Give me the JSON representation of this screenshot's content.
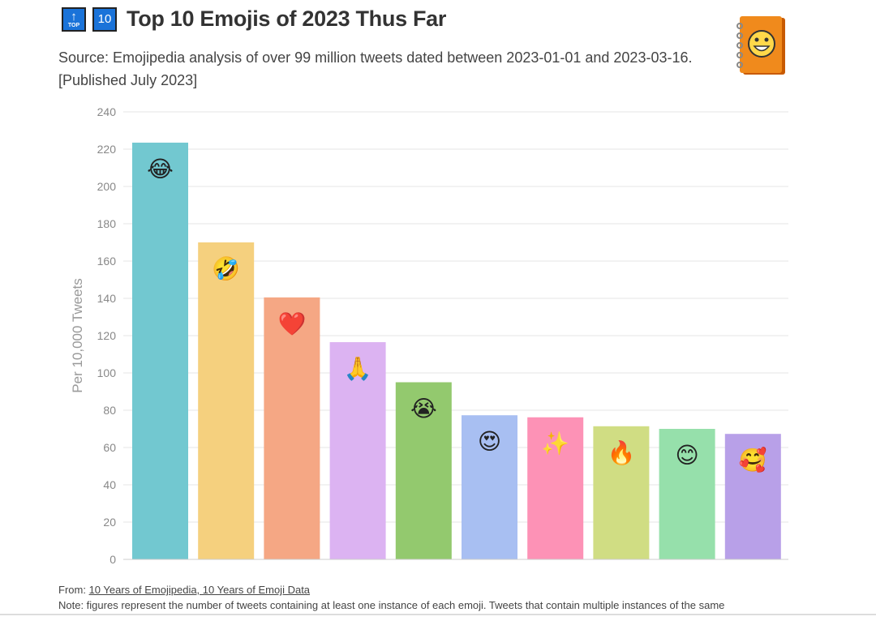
{
  "header": {
    "badge_top_label": "TOP",
    "badge_top_arrow": "↑",
    "badge_ten_label": "10",
    "title": "Top 10 Emojis of 2023 Thus Far",
    "subtitle": "Source: Emojipedia analysis of over 99 million tweets dated between 2023-01-01 and 2023-03-16. [Published July 2023]",
    "logo_icon": "emojipedia-book-smiley-icon"
  },
  "chart_data": {
    "type": "bar",
    "title": "Top 10 Emojis of 2023 Thus Far",
    "xlabel": "",
    "ylabel": "Per 10,000 Tweets",
    "ylim": [
      0,
      240
    ],
    "yticks": [
      0,
      20,
      40,
      60,
      80,
      100,
      120,
      140,
      160,
      180,
      200,
      220,
      240
    ],
    "grid": true,
    "categories": [
      "😂",
      "🤣",
      "❤️",
      "🙏",
      "😭",
      "😍",
      "✨",
      "🔥",
      "😊",
      "🥰"
    ],
    "values": [
      223.5,
      170,
      140.5,
      116.5,
      95,
      77.3,
      76.2,
      71.4,
      70,
      67.3
    ],
    "colors": [
      "#72c8d0",
      "#f5d07e",
      "#f5a784",
      "#dcb3f2",
      "#93c96e",
      "#a8bff2",
      "#fd92b6",
      "#d0dd83",
      "#96e0ab",
      "#b8a0e8"
    ]
  },
  "footer": {
    "from_label": "From:",
    "from_link": "10 Years of Emojipedia, 10 Years of Emoji Data",
    "note": "Note: figures represent the number of tweets containing at least one instance of each emoji. Tweets that contain multiple instances of the same"
  }
}
